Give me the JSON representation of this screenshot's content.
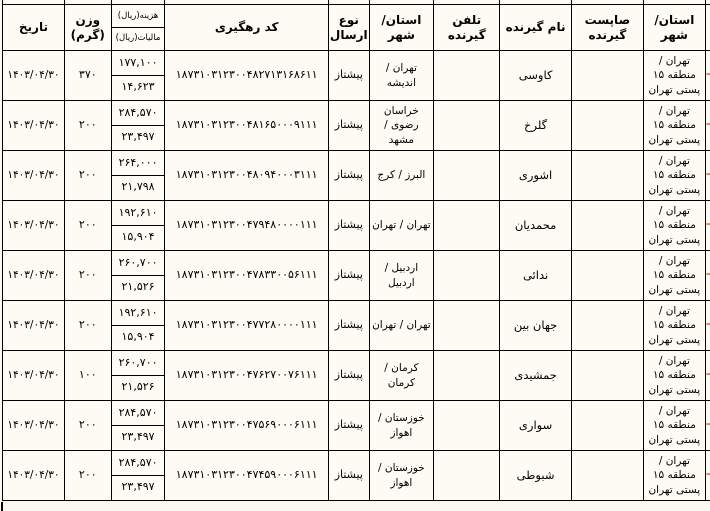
{
  "page": {
    "background": "#fbf8ef",
    "border_color": "#000000",
    "red_marker_color": "#ee7b79"
  },
  "table": {
    "edge_marker": "-",
    "headers": {
      "origin": "استان/ شهر",
      "sapost": "صاپست گیرنده",
      "name": "نام گیرنده",
      "phone": "تلفن گیرنده",
      "dest": "استان/ شهر",
      "send_type": "نوع ارسال",
      "tracking": "کد رهگیری",
      "cost": "هزینه(ریال)",
      "tax": "مالیات(ریال)",
      "weight": "وزن (گرم)",
      "date": "تاریخ"
    },
    "rows": [
      {
        "date": "۱۴۰۳/۰۴/۳۰",
        "weight": "۳۷۰",
        "cost": "۱۷۷,۱۰۰",
        "tax": "۱۴,۶۲۳",
        "tracking": "۱۸۷۳۱۰۳۱۲۳۰۰۴۸۲۷۱۳۱۶۸۶۱۱",
        "send_type": "پیشتاز",
        "dest": "تهران / اندیشه",
        "phone": "",
        "name": "کاوسی",
        "sapost": "",
        "origin": "تهران / منطقه ۱۵ پستی تهران"
      },
      {
        "date": "۱۴۰۳/۰۴/۳۰",
        "weight": "۲۰۰",
        "cost": "۲۸۴,۵۷۰",
        "tax": "۲۳,۴۹۷",
        "tracking": "۱۸۷۳۱۰۳۱۲۳۰۰۴۸۱۶۵۰۰۰۹۱۱۱",
        "send_type": "پیشتاز",
        "dest": "خراسان رضوی / مشهد",
        "phone": "",
        "name": "گلرخ",
        "sapost": "",
        "origin": "تهران / منطقه ۱۵ پستی تهران"
      },
      {
        "date": "۱۴۰۳/۰۴/۳۰",
        "weight": "۲۰۰",
        "cost": "۲۶۴,۰۰۰",
        "tax": "۲۱,۷۹۸",
        "tracking": "۱۸۷۳۱۰۳۱۲۳۰۰۴۸۰۹۴۰۰۰۳۱۱۱",
        "send_type": "پیشتاز",
        "dest": "البرز / کرج",
        "phone": "",
        "name": "اشوری",
        "sapost": "",
        "origin": "تهران / منطقه ۱۵ پستی تهران"
      },
      {
        "date": "۱۴۰۳/۰۴/۳۰",
        "weight": "۲۰۰",
        "cost": "۱۹۲,۶۱۰",
        "tax": "۱۵,۹۰۴",
        "tracking": "۱۸۷۳۱۰۳۱۲۳۰۰۴۷۹۴۸۰۰۰۰۱۱۱",
        "send_type": "پیشتاز",
        "dest": "تهران / تهران",
        "phone": "",
        "name": "محمدیان",
        "sapost": "",
        "origin": "تهران / منطقه ۱۵ پستی تهران"
      },
      {
        "date": "۱۴۰۳/۰۴/۳۰",
        "weight": "۲۰۰",
        "cost": "۲۶۰,۷۰۰",
        "tax": "۲۱,۵۲۶",
        "tracking": "۱۸۷۳۱۰۳۱۲۳۰۰۴۷۸۳۳۰۰۵۶۱۱۱",
        "send_type": "پیشتاز",
        "dest": "اردبیل / اردبیل",
        "phone": "",
        "name": "ندائی",
        "sapost": "",
        "origin": "تهران / منطقه ۱۵ پستی تهران"
      },
      {
        "date": "۱۴۰۳/۰۴/۳۰",
        "weight": "۲۰۰",
        "cost": "۱۹۲,۶۱۰",
        "tax": "۱۵,۹۰۴",
        "tracking": "۱۸۷۳۱۰۳۱۲۳۰۰۴۷۷۲۸۰۰۰۰۱۱۱",
        "send_type": "پیشتاز",
        "dest": "تهران / تهران",
        "phone": "",
        "name": "جهان بین",
        "sapost": "",
        "origin": "تهران / منطقه ۱۵ پستی تهران"
      },
      {
        "date": "۱۴۰۳/۰۴/۳۰",
        "weight": "۱۰۰",
        "cost": "۲۶۰,۷۰۰",
        "tax": "۲۱,۵۲۶",
        "tracking": "۱۸۷۳۱۰۳۱۲۳۰۰۴۷۶۲۷۰۰۷۶۱۱۱",
        "send_type": "پیشتاز",
        "dest": "کرمان / کرمان",
        "phone": "",
        "name": "جمشیدی",
        "sapost": "",
        "origin": "تهران / منطقه ۱۵ پستی تهران"
      },
      {
        "date": "۱۴۰۳/۰۴/۳۰",
        "weight": "۲۰۰",
        "cost": "۲۸۴,۵۷۰",
        "tax": "۲۳,۴۹۷",
        "tracking": "۱۸۷۳۱۰۳۱۲۳۰۰۴۷۵۶۹۰۰۰۶۱۱۱",
        "send_type": "پیشتاز",
        "dest": "خوزستان / اهواز",
        "phone": "",
        "name": "سواری",
        "sapost": "",
        "origin": "تهران / منطقه ۱۵ پستی تهران"
      },
      {
        "date": "۱۴۰۳/۰۴/۳۰",
        "weight": "۲۰۰",
        "cost": "۲۸۴,۵۷۰",
        "tax": "۲۳,۴۹۷",
        "tracking": "۱۸۷۳۱۰۳۱۲۳۰۰۴۷۴۵۹۰۰۰۶۱۱۱",
        "send_type": "پیشتاز",
        "dest": "خوزستان / اهواز",
        "phone": "",
        "name": "شبوطی",
        "sapost": "",
        "origin": "تهران / منطقه ۱۵ پستی تهران"
      }
    ]
  }
}
